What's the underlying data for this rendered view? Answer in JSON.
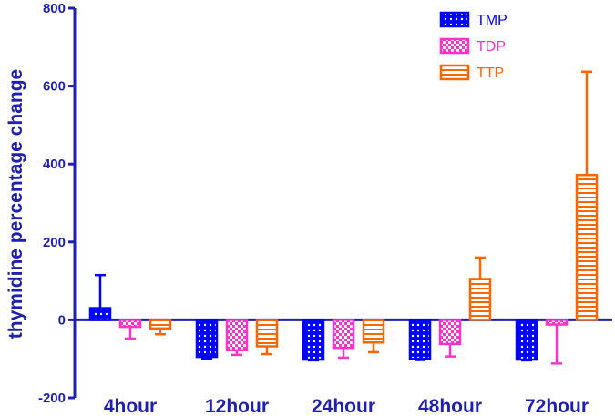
{
  "chart_data": {
    "type": "bar",
    "categories": [
      "4hour",
      "12hour",
      "24hour",
      "48hour",
      "72hour"
    ],
    "series": [
      {
        "name": "TMP",
        "values": [
          30,
          -95,
          -102,
          -100,
          -102
        ],
        "error": [
          85,
          5,
          2,
          3,
          2
        ],
        "color": "#0000ff",
        "pattern": "dots"
      },
      {
        "name": "TDP",
        "values": [
          -18,
          -78,
          -72,
          -62,
          -12
        ],
        "error": [
          30,
          12,
          25,
          32,
          100
        ],
        "color": "#ff33cc",
        "pattern": "checker"
      },
      {
        "name": "TTP",
        "values": [
          -22,
          -68,
          -58,
          105,
          372
        ],
        "error": [
          15,
          20,
          25,
          55,
          265
        ],
        "color": "#ff6600",
        "pattern": "hlines"
      }
    ],
    "title": "",
    "xlabel": "",
    "ylabel": "thymidine percentage change",
    "ylim": [
      -200,
      800
    ],
    "yticks": [
      -200,
      0,
      200,
      400,
      600,
      800
    ],
    "grid": false,
    "legend_position": "top-right",
    "axis_color": "#1f1fb4"
  }
}
